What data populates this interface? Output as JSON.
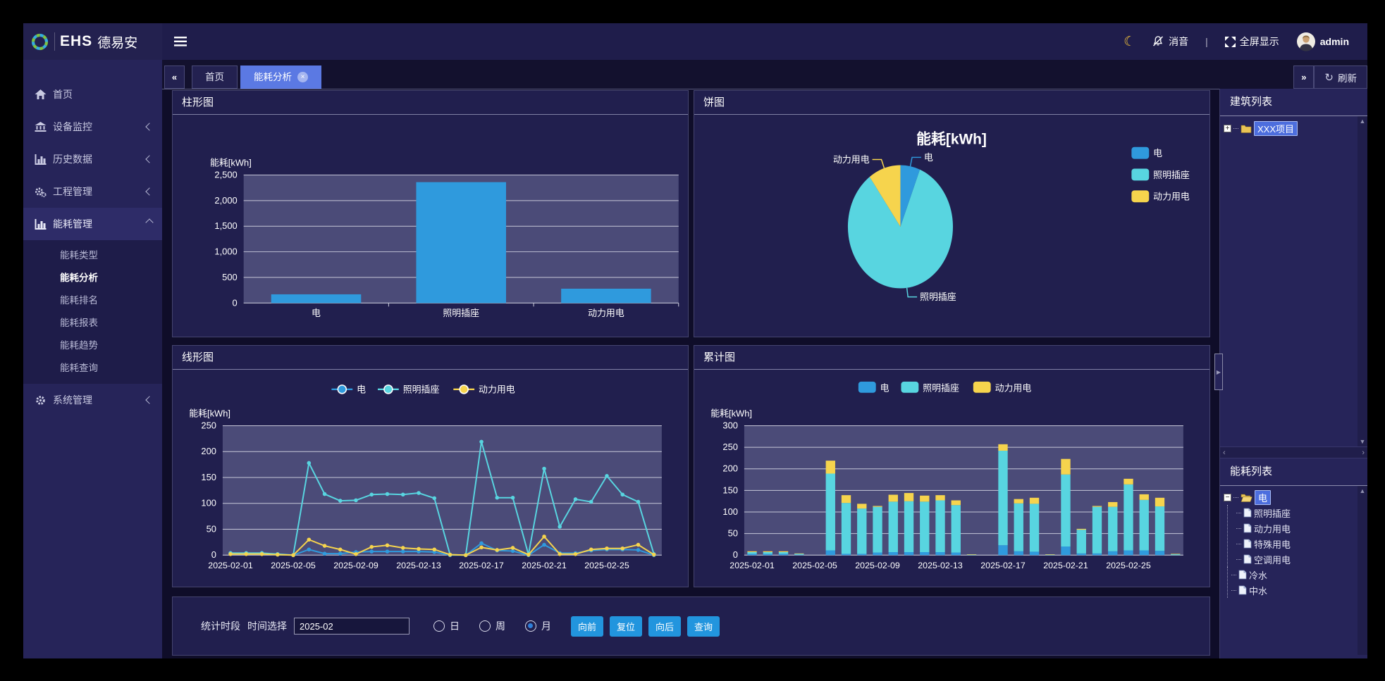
{
  "app": {
    "logo_text": "EHS",
    "logo_suffix": "德易安"
  },
  "header": {
    "mute": "消音",
    "fullscreen": "全屏显示",
    "username": "admin",
    "divider": "|"
  },
  "tabbar": {
    "back": "«",
    "forward": "»",
    "refresh": "刷新",
    "refresh_icon": "↻",
    "tabs": [
      {
        "label": "首页"
      },
      {
        "label": "能耗分析"
      }
    ]
  },
  "sidebar": {
    "items": [
      {
        "label": "首页"
      },
      {
        "label": "设备监控"
      },
      {
        "label": "历史数据"
      },
      {
        "label": "工程管理"
      },
      {
        "label": "能耗管理",
        "children": [
          {
            "label": "能耗类型"
          },
          {
            "label": "能耗分析"
          },
          {
            "label": "能耗排名"
          },
          {
            "label": "能耗报表"
          },
          {
            "label": "能耗趋势"
          },
          {
            "label": "能耗查询"
          }
        ]
      },
      {
        "label": "系统管理"
      }
    ]
  },
  "right_panel": {
    "building_title": "建筑列表",
    "building_node": "XXX项目",
    "energy_title": "能耗列表",
    "energy_root": "电",
    "energy_children": [
      "照明插座",
      "动力用电",
      "特殊用电",
      "空调用电"
    ],
    "energy_siblings": [
      "冷水",
      "中水"
    ]
  },
  "controls": {
    "section": "统计时段",
    "picker": "时间选择",
    "date_value": "2025-02",
    "radio_day": "日",
    "radio_week": "周",
    "radio_month": "月",
    "checked": "月",
    "buttons": [
      "向前",
      "复位",
      "向后",
      "查询"
    ]
  },
  "colors": {
    "electric": "#2f9add",
    "lighting": "#58d5e0",
    "power": "#f6d44d",
    "plot_bg": "#4b4b78",
    "accent": "#5b79e3",
    "button": "#2295de"
  },
  "chart_data": [
    {
      "panel_title": "柱形图",
      "type": "bar",
      "y_name": "能耗[kWh]",
      "ylim": [
        0,
        2500
      ],
      "y_step": 500,
      "categories": [
        "电",
        "照明插座",
        "动力用电"
      ],
      "values": [
        170,
        2360,
        280
      ],
      "color": "#2f9add",
      "grid": true
    },
    {
      "panel_title": "饼图",
      "type": "pie",
      "title": "能耗[kWh]",
      "legend_position": "right",
      "slices": [
        {
          "name": "电",
          "value": 170,
          "color": "#2f9add"
        },
        {
          "name": "照明插座",
          "value": 2360,
          "color": "#58d5e0"
        },
        {
          "name": "动力用电",
          "value": 280,
          "color": "#f6d44d"
        }
      ]
    },
    {
      "panel_title": "线形图",
      "type": "line",
      "y_name": "能耗[kWh]",
      "ylim": [
        0,
        250
      ],
      "y_step": 50,
      "x_tick_every": 4,
      "grid": true,
      "legend_position": "top",
      "x": [
        "2025-02-01",
        "2025-02-02",
        "2025-02-03",
        "2025-02-04",
        "2025-02-05",
        "2025-02-06",
        "2025-02-07",
        "2025-02-08",
        "2025-02-09",
        "2025-02-10",
        "2025-02-11",
        "2025-02-12",
        "2025-02-13",
        "2025-02-14",
        "2025-02-15",
        "2025-02-16",
        "2025-02-17",
        "2025-02-18",
        "2025-02-19",
        "2025-02-20",
        "2025-02-21",
        "2025-02-22",
        "2025-02-23",
        "2025-02-24",
        "2025-02-25",
        "2025-02-26",
        "2025-02-27",
        "2025-02-28"
      ],
      "series": [
        {
          "name": "电",
          "color": "#2f9add",
          "values": [
            3,
            3,
            3,
            1,
            0,
            11,
            3,
            3,
            6,
            7,
            7,
            7,
            7,
            6,
            0,
            0,
            23,
            9,
            8,
            0,
            20,
            4,
            4,
            9,
            11,
            11,
            10,
            0
          ]
        },
        {
          "name": "照明插座",
          "color": "#58d5e0",
          "values": [
            4,
            4,
            4,
            2,
            0,
            178,
            118,
            105,
            106,
            117,
            118,
            117,
            120,
            110,
            1,
            0,
            219,
            111,
            111,
            1,
            167,
            55,
            108,
            103,
            153,
            117,
            103,
            2
          ]
        },
        {
          "name": "动力用电",
          "color": "#f6d44d",
          "values": [
            2,
            2,
            2,
            1,
            0,
            30,
            18,
            11,
            2,
            16,
            19,
            14,
            12,
            11,
            1,
            0,
            15,
            10,
            14,
            1,
            36,
            2,
            2,
            11,
            13,
            13,
            20,
            1
          ]
        }
      ]
    },
    {
      "panel_title": "累计图",
      "type": "stacked_bar",
      "y_name": "能耗[kWh]",
      "ylim": [
        0,
        300
      ],
      "y_step": 50,
      "x_tick_every": 4,
      "grid": true,
      "legend_position": "top",
      "x": [
        "2025-02-01",
        "2025-02-02",
        "2025-02-03",
        "2025-02-04",
        "2025-02-05",
        "2025-02-06",
        "2025-02-07",
        "2025-02-08",
        "2025-02-09",
        "2025-02-10",
        "2025-02-11",
        "2025-02-12",
        "2025-02-13",
        "2025-02-14",
        "2025-02-15",
        "2025-02-16",
        "2025-02-17",
        "2025-02-18",
        "2025-02-19",
        "2025-02-20",
        "2025-02-21",
        "2025-02-22",
        "2025-02-23",
        "2025-02-24",
        "2025-02-25",
        "2025-02-26",
        "2025-02-27",
        "2025-02-28"
      ],
      "series": [
        {
          "name": "电",
          "color": "#2f9add",
          "values": [
            3,
            3,
            3,
            1,
            0,
            11,
            3,
            3,
            6,
            7,
            7,
            7,
            7,
            6,
            0,
            0,
            23,
            9,
            8,
            0,
            20,
            4,
            4,
            9,
            11,
            11,
            10,
            0
          ]
        },
        {
          "name": "照明插座",
          "color": "#58d5e0",
          "values": [
            4,
            4,
            4,
            2,
            0,
            178,
            118,
            105,
            106,
            117,
            118,
            117,
            120,
            110,
            1,
            0,
            219,
            111,
            111,
            1,
            167,
            55,
            108,
            103,
            153,
            117,
            103,
            2
          ]
        },
        {
          "name": "动力用电",
          "color": "#f6d44d",
          "values": [
            2,
            2,
            2,
            1,
            0,
            30,
            18,
            11,
            2,
            16,
            19,
            14,
            12,
            11,
            1,
            0,
            15,
            10,
            14,
            1,
            36,
            2,
            2,
            11,
            13,
            13,
            20,
            1
          ]
        }
      ]
    }
  ]
}
